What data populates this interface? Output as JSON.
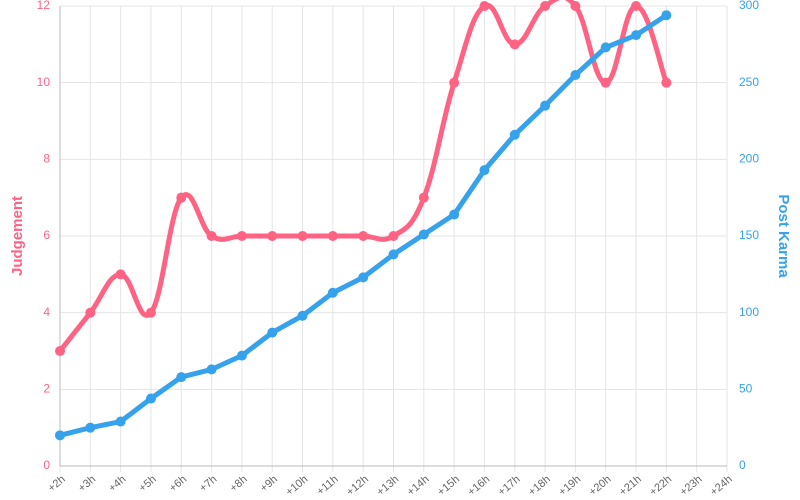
{
  "chart_data": {
    "type": "line",
    "categories": [
      "+2h",
      "+3h",
      "+4h",
      "+5h",
      "+6h",
      "+7h",
      "+8h",
      "+9h",
      "+10h",
      "+11h",
      "+12h",
      "+13h",
      "+14h",
      "+15h",
      "+16h",
      "+17h",
      "+18h",
      "+19h",
      "+20h",
      "+21h",
      "+22h",
      "+23h",
      "+24h"
    ],
    "series": [
      {
        "name": "Judgement",
        "color": "#ff6384",
        "smooth": true,
        "values": [
          3,
          4,
          5,
          4,
          7,
          6,
          6,
          6,
          6,
          6,
          6,
          6,
          7,
          10,
          12,
          11,
          12,
          12,
          10,
          12,
          10,
          null,
          null
        ]
      },
      {
        "name": "Post Karma",
        "color": "#36a2eb",
        "axis": "y2",
        "smooth": false,
        "values": [
          20,
          25,
          29,
          44,
          58,
          63,
          72,
          87,
          98,
          113,
          123,
          138,
          151,
          164,
          193,
          216,
          235,
          255,
          273,
          281,
          294,
          null,
          null
        ]
      }
    ],
    "ylabel": "Judgement",
    "y2label": "Post Karma",
    "ylim": [
      0,
      12
    ],
    "yticks": [
      0,
      2,
      4,
      6,
      8,
      10,
      12
    ],
    "y2lim": [
      0,
      300
    ],
    "y2ticks": [
      0,
      50,
      100,
      150,
      200,
      250,
      300
    ],
    "grid": true
  }
}
